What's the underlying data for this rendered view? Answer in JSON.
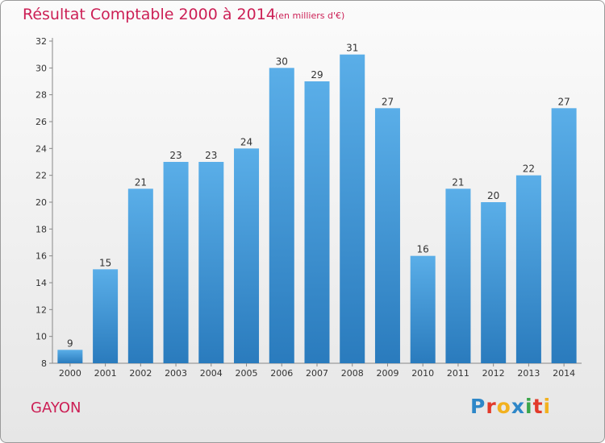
{
  "chart_data": {
    "type": "bar",
    "title": "Résultat Comptable 2000 à 2014",
    "subtitle": "(en milliers d'€)",
    "xlabel": "",
    "ylabel": "",
    "categories": [
      "2000",
      "2001",
      "2002",
      "2003",
      "2004",
      "2005",
      "2006",
      "2007",
      "2008",
      "2009",
      "2010",
      "2011",
      "2012",
      "2013",
      "2014"
    ],
    "values": [
      9,
      15,
      21,
      23,
      23,
      24,
      30,
      29,
      31,
      27,
      16,
      21,
      20,
      22,
      27
    ],
    "ylim": [
      8,
      32
    ],
    "yticks": [
      8,
      10,
      12,
      14,
      16,
      18,
      20,
      22,
      24,
      26,
      28,
      30,
      32
    ],
    "grid": false,
    "bar_color_top": "#5aaee8",
    "bar_color_bottom": "#2a7bbd"
  },
  "footer": {
    "commune": "GAYON",
    "logo_letters": [
      "P",
      "r",
      "o",
      "x",
      "i",
      "t",
      "i"
    ]
  }
}
